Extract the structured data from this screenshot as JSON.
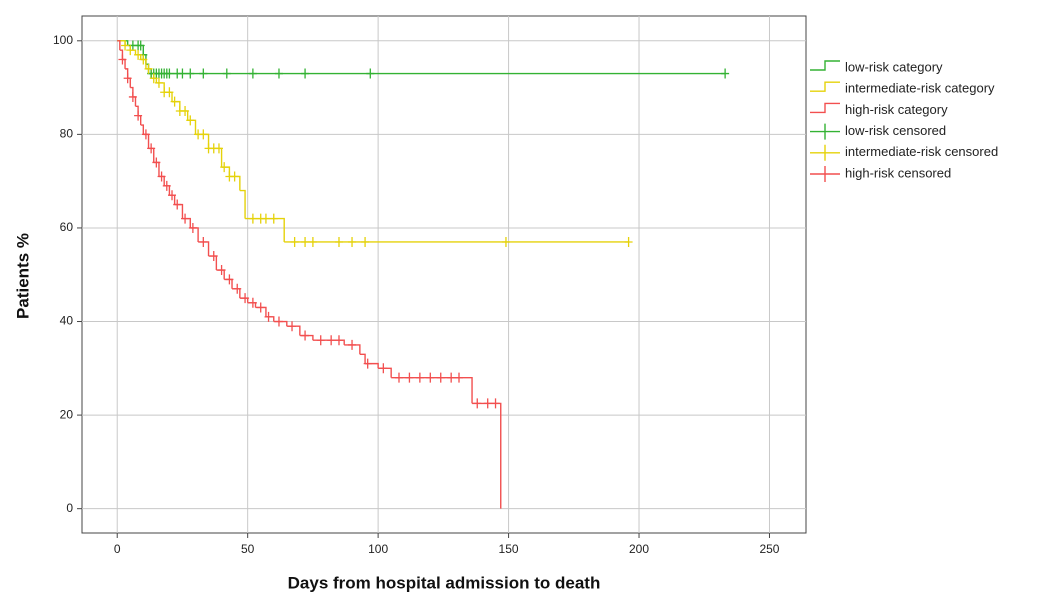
{
  "chart_data": {
    "type": "line",
    "xlabel": "Days from hospital admission to death",
    "ylabel": "Patients %",
    "xlim": [
      -13.5,
      264
    ],
    "ylim": [
      -5.2,
      105.3
    ],
    "xticks": [
      0,
      50,
      100,
      150,
      200,
      250
    ],
    "yticks": [
      0,
      20,
      40,
      60,
      80,
      100
    ],
    "grid": true,
    "legend": "upper right",
    "series": [
      {
        "name": "low-risk category",
        "color": "#33b233",
        "drawstyle": "steps-post",
        "x": [
          0,
          4,
          10,
          11,
          12,
          233
        ],
        "values": [
          100,
          99,
          97,
          95,
          93,
          93
        ]
      },
      {
        "name": "intermediate-risk category",
        "color": "#e5d20a",
        "drawstyle": "steps-post",
        "x": [
          0,
          3,
          5,
          7,
          9,
          11,
          13,
          15,
          18,
          21,
          24,
          27,
          30,
          35,
          40,
          43,
          47,
          49,
          64,
          196
        ],
        "values": [
          100,
          99,
          98,
          97,
          96,
          94,
          92,
          91,
          89,
          87,
          85,
          83,
          80,
          77,
          73,
          71,
          68,
          62,
          57,
          57
        ]
      },
      {
        "name": "high-risk category",
        "color": "#f24f4f",
        "drawstyle": "steps-post",
        "x": [
          0,
          1,
          2,
          3,
          4,
          5,
          6,
          7,
          8,
          9,
          10,
          12,
          14,
          16,
          18,
          20,
          22,
          25,
          28,
          31,
          35,
          38,
          41,
          44,
          47,
          50,
          53,
          57,
          60,
          65,
          70,
          75,
          87,
          93,
          95,
          100,
          105,
          136,
          147
        ],
        "values": [
          100,
          98,
          96,
          94,
          92,
          90,
          88,
          86,
          84,
          82,
          80,
          77,
          74,
          71,
          69,
          67,
          65,
          62,
          60,
          57,
          54,
          51,
          49,
          47,
          45,
          44,
          43,
          41,
          40,
          39,
          37,
          36,
          35,
          33,
          31,
          30,
          28,
          22.5,
          0
        ]
      },
      {
        "name": "low-risk censored",
        "color": "#33b233",
        "marker": "+",
        "x": [
          6,
          8,
          9,
          10,
          13,
          14,
          15,
          16,
          17,
          18,
          19,
          20,
          23,
          25,
          28,
          33,
          42,
          52,
          62,
          72,
          97,
          233
        ],
        "values": [
          99,
          99,
          99,
          97,
          93,
          93,
          93,
          93,
          93,
          93,
          93,
          93,
          93,
          93,
          93,
          93,
          93,
          93,
          93,
          93,
          93,
          93
        ]
      },
      {
        "name": "intermediate-risk censored",
        "color": "#e5d20a",
        "marker": "+",
        "x": [
          3,
          5,
          8,
          10,
          12,
          14,
          16,
          18,
          20,
          22,
          24,
          26,
          28,
          31,
          33,
          35,
          37,
          39,
          41,
          43,
          45,
          52,
          55,
          57,
          60,
          68,
          72,
          75,
          85,
          90,
          95,
          149,
          196
        ],
        "values": [
          99,
          98,
          97,
          96,
          94,
          92,
          91,
          89,
          89,
          87,
          85,
          85,
          83,
          80,
          80,
          77,
          77,
          77,
          73,
          71,
          71,
          62,
          62,
          62,
          62,
          57,
          57,
          57,
          57,
          57,
          57,
          57,
          57
        ]
      },
      {
        "name": "high-risk censored",
        "color": "#f24f4f",
        "marker": "+",
        "x": [
          2,
          4,
          6,
          8,
          11,
          13,
          15,
          17,
          19,
          21,
          23,
          26,
          29,
          33,
          37,
          40,
          43,
          46,
          49,
          52,
          55,
          58,
          62,
          67,
          72,
          78,
          82,
          85,
          90,
          96,
          102,
          108,
          112,
          116,
          120,
          124,
          128,
          131,
          138,
          142,
          145
        ],
        "values": [
          96,
          92,
          88,
          84,
          80,
          77,
          74,
          71,
          69,
          67,
          65,
          62,
          60,
          57,
          54,
          51,
          49,
          47,
          45,
          44,
          43,
          41,
          40,
          39,
          37,
          36,
          36,
          36,
          35,
          31,
          30,
          28,
          28,
          28,
          28,
          28,
          28,
          28,
          22.5,
          22.5,
          22.5
        ]
      }
    ]
  }
}
